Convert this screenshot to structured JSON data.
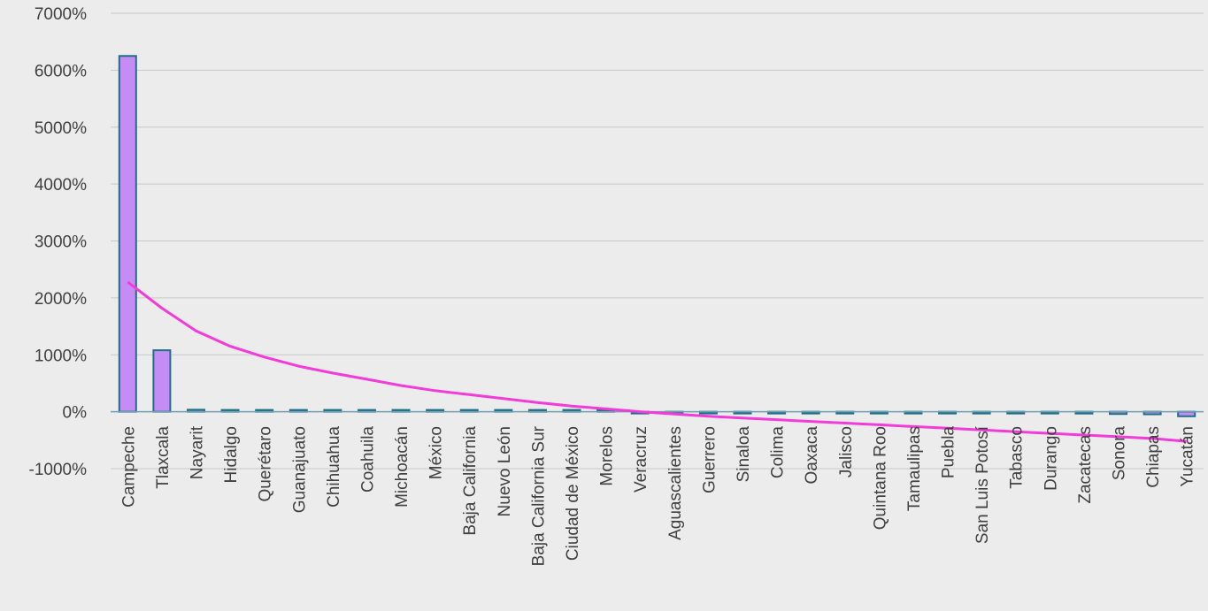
{
  "chart_data": {
    "type": "bar",
    "title": "",
    "xlabel": "",
    "ylabel": "",
    "ylim": [
      -1000,
      7000
    ],
    "yticks": [
      -1000,
      0,
      1000,
      2000,
      3000,
      4000,
      5000,
      6000,
      7000
    ],
    "ytick_labels": [
      "-1000%",
      "0%",
      "1000%",
      "2000%",
      "3000%",
      "4000%",
      "5000%",
      "6000%",
      "7000%"
    ],
    "grid": true,
    "legend": "none",
    "categories": [
      "Campeche",
      "Tlaxcala",
      "Nayarit",
      "Hidalgo",
      "Querétaro",
      "Guanajuato",
      "Chihuahua",
      "Coahuila",
      "Michoacán",
      "México",
      "Baja California",
      "Nuevo León",
      "Baja California Sur",
      "Ciudad de México",
      "Morelos",
      "Veracruz",
      "Aguascalientes",
      "Guerrero",
      "Sinaloa",
      "Colima",
      "Oaxaca",
      "Jalisco",
      "Quintana Roo",
      "Tamaulipas",
      "Puebla",
      "San Luis Potosí",
      "Tabasco",
      "Durango",
      "Zacatecas",
      "Sonora",
      "Chiapas",
      "Yucatán"
    ],
    "series": [
      {
        "type": "bar",
        "values": [
          6250,
          1080,
          35,
          20,
          18,
          15,
          12,
          10,
          8,
          6,
          5,
          4,
          3,
          2,
          1,
          -10,
          -12,
          -15,
          -25,
          -28,
          -20,
          -18,
          -18,
          -20,
          -22,
          -25,
          -28,
          -30,
          -32,
          -40,
          -45,
          -80
        ],
        "color": "#c58cf5",
        "edge_color": "#1f6f87"
      },
      {
        "type": "line",
        "trend": "logarithmic",
        "values": [
          2280,
          1820,
          1420,
          1150,
          960,
          800,
          680,
          570,
          460,
          370,
          300,
          230,
          160,
          100,
          50,
          0,
          -40,
          -80,
          -110,
          -140,
          -170,
          -200,
          -230,
          -260,
          -290,
          -320,
          -350,
          -380,
          -410,
          -440,
          -470,
          -520
        ],
        "color": "#f23bd8"
      }
    ]
  }
}
